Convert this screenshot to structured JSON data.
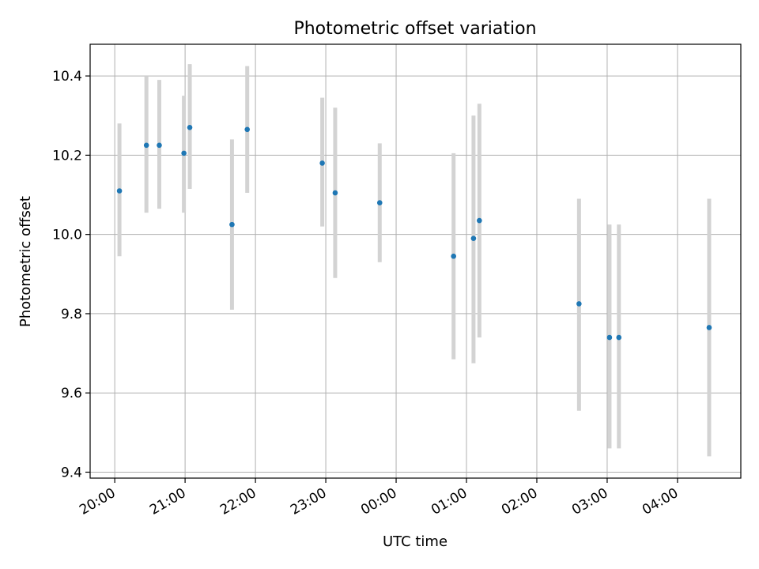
{
  "chart_data": {
    "type": "scatter",
    "title": "Photometric offset variation",
    "xlabel": "UTC time",
    "ylabel": "Photometric offset",
    "x_tick_labels": [
      "20:00",
      "21:00",
      "22:00",
      "23:00",
      "00:00",
      "01:00",
      "02:00",
      "03:00",
      "04:00"
    ],
    "y_ticks": [
      9.4,
      9.6,
      9.8,
      10.0,
      10.2,
      10.4
    ],
    "y_tick_labels": [
      "9.4",
      "9.6",
      "9.8",
      "10.0",
      "10.2",
      "10.4"
    ],
    "xlim": [
      "19:39",
      "04:54"
    ],
    "ylim": [
      9.385,
      10.48
    ],
    "grid": true,
    "marker_color": "#1f77b4",
    "errorbar_color": "#d3d3d3",
    "points": [
      {
        "time": "20:04",
        "y": 10.11,
        "yerr_low": 9.945,
        "yerr_high": 10.28
      },
      {
        "time": "20:27",
        "y": 10.225,
        "yerr_low": 10.055,
        "yerr_high": 10.4
      },
      {
        "time": "20:38",
        "y": 10.225,
        "yerr_low": 10.065,
        "yerr_high": 10.39
      },
      {
        "time": "20:59",
        "y": 10.205,
        "yerr_low": 10.055,
        "yerr_high": 10.35
      },
      {
        "time": "21:04",
        "y": 10.27,
        "yerr_low": 10.115,
        "yerr_high": 10.43
      },
      {
        "time": "21:40",
        "y": 10.025,
        "yerr_low": 9.81,
        "yerr_high": 10.24
      },
      {
        "time": "21:53",
        "y": 10.265,
        "yerr_low": 10.105,
        "yerr_high": 10.425
      },
      {
        "time": "22:57",
        "y": 10.18,
        "yerr_low": 10.02,
        "yerr_high": 10.345
      },
      {
        "time": "23:08",
        "y": 10.105,
        "yerr_low": 9.89,
        "yerr_high": 10.32
      },
      {
        "time": "23:46",
        "y": 10.08,
        "yerr_low": 9.93,
        "yerr_high": 10.23
      },
      {
        "time": "00:49",
        "y": 9.945,
        "yerr_low": 9.685,
        "yerr_high": 10.205
      },
      {
        "time": "01:06",
        "y": 9.99,
        "yerr_low": 9.675,
        "yerr_high": 10.3
      },
      {
        "time": "01:11",
        "y": 10.035,
        "yerr_low": 9.74,
        "yerr_high": 10.33
      },
      {
        "time": "02:36",
        "y": 9.825,
        "yerr_low": 9.555,
        "yerr_high": 10.09
      },
      {
        "time": "03:02",
        "y": 9.74,
        "yerr_low": 9.46,
        "yerr_high": 10.025
      },
      {
        "time": "03:10",
        "y": 9.74,
        "yerr_low": 9.46,
        "yerr_high": 10.025
      },
      {
        "time": "04:27",
        "y": 9.765,
        "yerr_low": 9.44,
        "yerr_high": 10.09
      }
    ]
  }
}
